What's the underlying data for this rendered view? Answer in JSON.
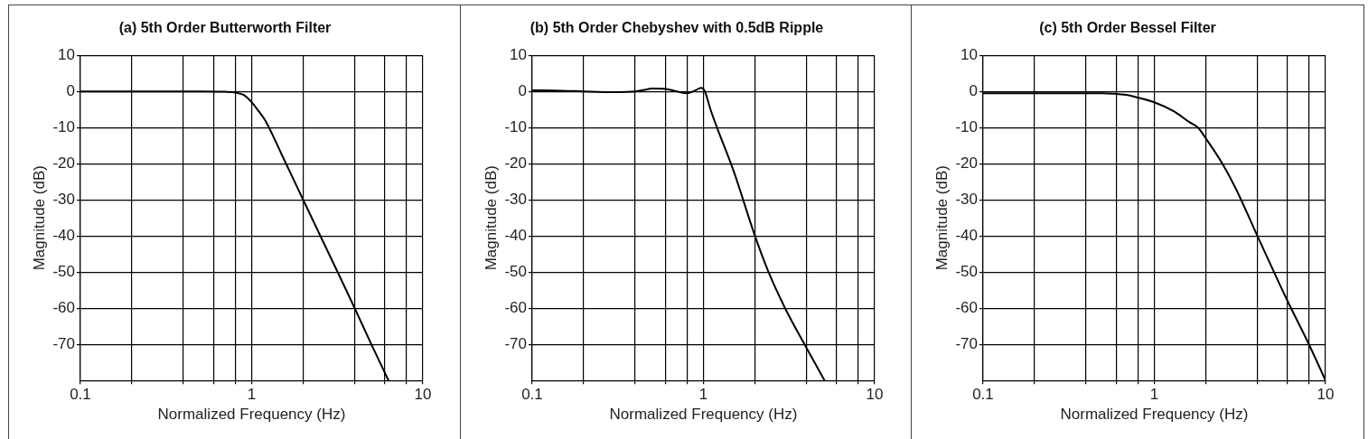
{
  "chart_data": [
    {
      "type": "line",
      "title": "(a) 5th Order Butterworth Filter",
      "xlabel": "Normalized Frequency (Hz)",
      "ylabel": "Magnitude (dB)",
      "log": "x",
      "grid": true,
      "marker": "none",
      "line_style": "solid",
      "xlim": [
        0.1,
        10
      ],
      "ylim": [
        -80,
        10
      ],
      "xticks": [
        0.1,
        {
          "value": 0.2,
          "label": null
        },
        {
          "value": 0.4,
          "label": null
        },
        {
          "value": 0.6,
          "label": null
        },
        {
          "value": 0.8,
          "label": null
        },
        1,
        {
          "value": 2,
          "label": null
        },
        {
          "value": 4,
          "label": null
        },
        {
          "value": 6,
          "label": null
        },
        {
          "value": 8,
          "label": null
        },
        10
      ],
      "yticks": [
        -70,
        -60,
        -50,
        -40,
        -30,
        -20,
        -10,
        0,
        10
      ],
      "series": [
        {
          "color": "#000000",
          "x": [
            0.1,
            0.3,
            0.5,
            0.7,
            0.8,
            0.9,
            1,
            1.1,
            1.2,
            1.5,
            2,
            3,
            4,
            5,
            6.3
          ],
          "values": [
            0,
            0,
            0,
            -0.1,
            -0.3,
            -1,
            -3,
            -5.5,
            -8,
            -17.5,
            -30,
            -47.5,
            -60,
            -70,
            -80
          ]
        }
      ]
    },
    {
      "type": "line",
      "title": "(b) 5th Order Chebyshev with 0.5dB Ripple",
      "xlabel": "Normalized Frequency (Hz)",
      "ylabel": "Magnitude (dB)",
      "log": "x",
      "grid": true,
      "marker": "none",
      "line_style": "solid",
      "xlim": [
        0.1,
        10
      ],
      "ylim": [
        -80,
        10
      ],
      "xticks": [
        0.1,
        {
          "value": 0.2,
          "label": null
        },
        {
          "value": 0.4,
          "label": null
        },
        {
          "value": 0.6,
          "label": null
        },
        {
          "value": 0.8,
          "label": null
        },
        1,
        {
          "value": 2,
          "label": null
        },
        {
          "value": 4,
          "label": null
        },
        {
          "value": 6,
          "label": null
        },
        {
          "value": 8,
          "label": null
        },
        10
      ],
      "yticks": [
        -70,
        -60,
        -50,
        -40,
        -30,
        -20,
        -10,
        0,
        10
      ],
      "series": [
        {
          "color": "#000000",
          "x": [
            0.1,
            0.15,
            0.2,
            0.3,
            0.4,
            0.45,
            0.5,
            0.6,
            0.7,
            0.8,
            0.9,
            0.97,
            1.02,
            1.1,
            1.2,
            1.5,
            2,
            2.4,
            3,
            4,
            5.1
          ],
          "values": [
            0.3,
            0.2,
            0,
            -0.2,
            0,
            0.4,
            0.8,
            0.7,
            0,
            -0.5,
            0.3,
            1,
            0,
            -5,
            -10,
            -22,
            -40,
            -50,
            -60,
            -71,
            -80
          ]
        }
      ]
    },
    {
      "type": "line",
      "title": "(c) 5th Order Bessel Filter",
      "xlabel": "Normalized Frequency (Hz)",
      "ylabel": "Magnitude (dB)",
      "log": "x",
      "grid": true,
      "marker": "none",
      "line_style": "solid",
      "xlim": [
        0.1,
        10
      ],
      "ylim": [
        -80,
        10
      ],
      "xticks": [
        0.1,
        {
          "value": 0.2,
          "label": null
        },
        {
          "value": 0.4,
          "label": null
        },
        {
          "value": 0.6,
          "label": null
        },
        {
          "value": 0.8,
          "label": null
        },
        1,
        {
          "value": 2,
          "label": null
        },
        {
          "value": 4,
          "label": null
        },
        {
          "value": 6,
          "label": null
        },
        {
          "value": 8,
          "label": null
        },
        10
      ],
      "yticks": [
        -70,
        -60,
        -50,
        -40,
        -30,
        -20,
        -10,
        0,
        10
      ],
      "series": [
        {
          "color": "#000000",
          "x": [
            0.1,
            0.3,
            0.5,
            0.6,
            0.7,
            0.8,
            1,
            1.3,
            1.6,
            1.8,
            2,
            2.5,
            3,
            4,
            5,
            6,
            8,
            10
          ],
          "values": [
            -0.5,
            -0.5,
            -0.5,
            -0.7,
            -1,
            -1.7,
            -3,
            -5.5,
            -8.5,
            -10,
            -13,
            -20,
            -27,
            -40,
            -50,
            -58,
            -70,
            -80
          ]
        }
      ]
    }
  ]
}
